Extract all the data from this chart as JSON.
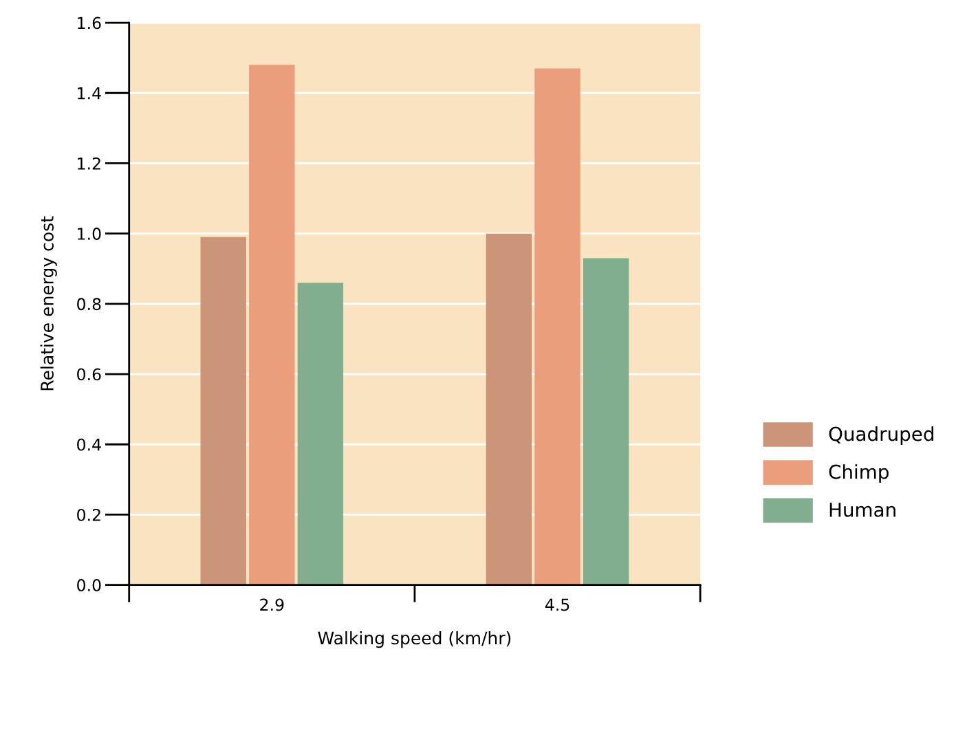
{
  "chart_data": {
    "type": "bar",
    "xlabel": "Walking speed (km/hr)",
    "ylabel": "Relative energy cost",
    "categories": [
      "2.9",
      "4.5"
    ],
    "series": [
      {
        "name": "Quadruped",
        "color": "#cc957a",
        "values": [
          0.99,
          1.0
        ]
      },
      {
        "name": "Chimp",
        "color": "#eb9e7c",
        "values": [
          1.48,
          1.47
        ]
      },
      {
        "name": "Human",
        "color": "#80ae8f",
        "values": [
          0.86,
          0.93
        ]
      }
    ],
    "ylim": [
      0,
      1.6
    ],
    "yticks": [
      {
        "value": 0,
        "label": "0.0"
      },
      0.2,
      0.4,
      0.6,
      0.8,
      {
        "value": 1,
        "label": "1.0"
      },
      1.2,
      1.4,
      1.6
    ],
    "grid": "y",
    "legend": "right"
  }
}
